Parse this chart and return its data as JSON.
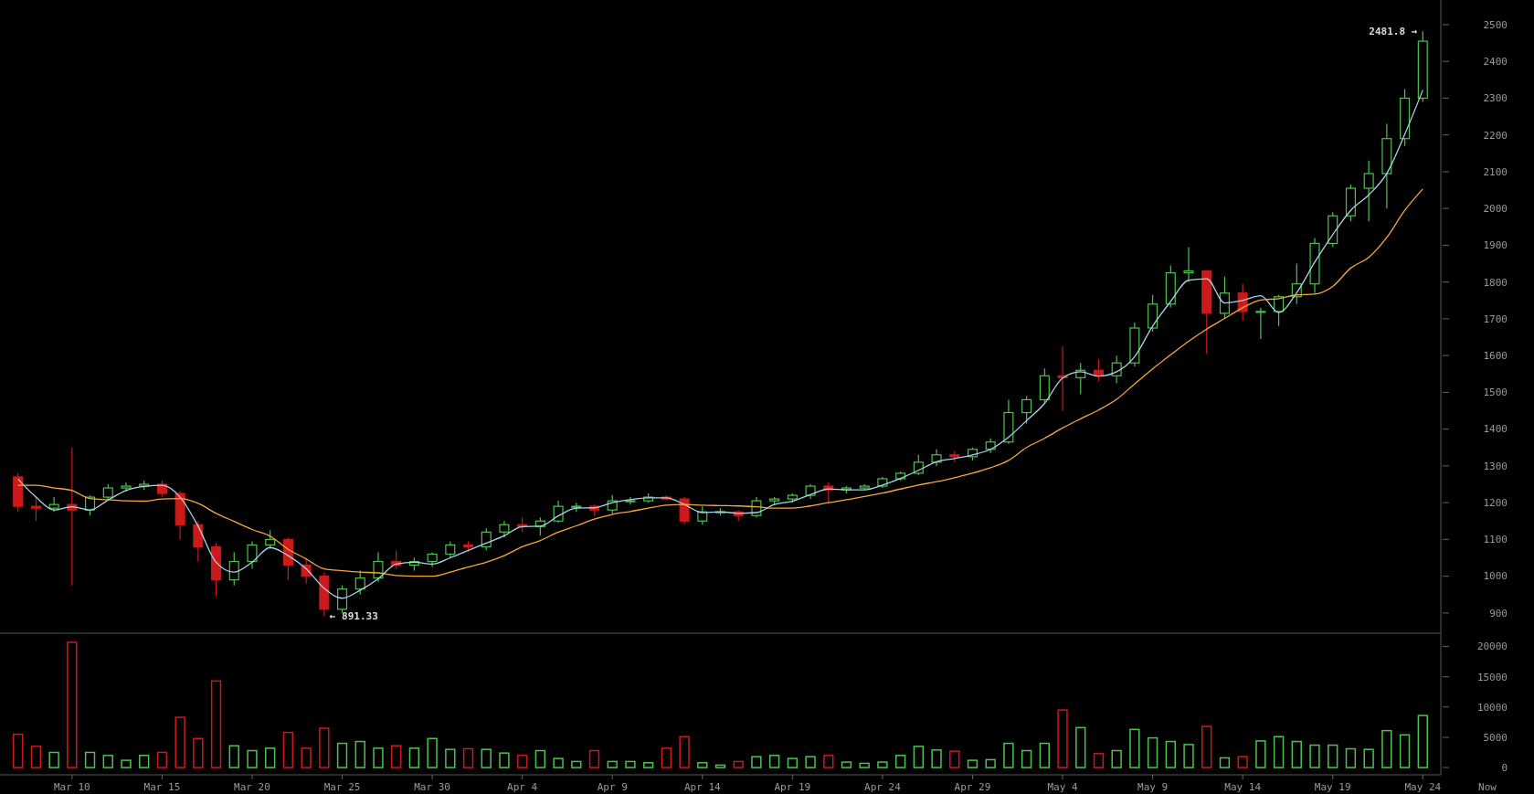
{
  "chart_data": [
    {
      "type": "candlestick",
      "tick_labels": "y",
      "x": [
        "--03-07",
        "--03-08",
        "--03-09",
        "--03-10",
        "--03-11",
        "--03-12",
        "--03-13",
        "--03-14",
        "--03-15",
        "--03-16",
        "--03-17",
        "--03-18",
        "--03-19",
        "--03-20",
        "--03-21",
        "--03-22",
        "--03-23",
        "--03-24",
        "--03-25",
        "--03-26",
        "--03-27",
        "--03-28",
        "--03-29",
        "--03-30",
        "--03-31",
        "--04-01",
        "--04-02",
        "--04-03",
        "--04-04",
        "--04-05",
        "--04-06",
        "--04-07",
        "--04-08",
        "--04-09",
        "--04-10",
        "--04-11",
        "--04-12",
        "--04-13",
        "--04-14",
        "--04-15",
        "--04-16",
        "--04-17",
        "--04-18",
        "--04-19",
        "--04-20",
        "--04-21",
        "--04-22",
        "--04-23",
        "--04-24",
        "--04-25",
        "--04-26",
        "--04-27",
        "--04-28",
        "--04-29",
        "--04-30",
        "--05-01",
        "--05-02",
        "--05-03",
        "--05-04",
        "--05-05",
        "--05-06",
        "--05-07",
        "--05-08",
        "--05-09",
        "--05-10",
        "--05-11",
        "--05-12",
        "--05-13",
        "--05-14",
        "--05-15",
        "--05-16",
        "--05-17",
        "--05-18",
        "--05-19",
        "--05-20",
        "--05-21",
        "--05-22",
        "--05-23",
        "--05-24"
      ],
      "ohlc": [
        [
          1270,
          1280,
          1175,
          1190
        ],
        [
          1190,
          1215,
          1150,
          1185
        ],
        [
          1185,
          1215,
          1175,
          1195
        ],
        [
          1195,
          1350,
          975,
          1180
        ],
        [
          1180,
          1220,
          1165,
          1215
        ],
        [
          1215,
          1250,
          1205,
          1240
        ],
        [
          1240,
          1255,
          1230,
          1245
        ],
        [
          1245,
          1260,
          1235,
          1250
        ],
        [
          1250,
          1260,
          1215,
          1225
        ],
        [
          1225,
          1230,
          1100,
          1140
        ],
        [
          1140,
          1150,
          1040,
          1080
        ],
        [
          1080,
          1090,
          945,
          990
        ],
        [
          990,
          1065,
          975,
          1040
        ],
        [
          1040,
          1095,
          1020,
          1085
        ],
        [
          1085,
          1125,
          1075,
          1100
        ],
        [
          1100,
          1105,
          990,
          1030
        ],
        [
          1030,
          1050,
          980,
          1000
        ],
        [
          1000,
          1010,
          891.33,
          910
        ],
        [
          910,
          975,
          900,
          965
        ],
        [
          965,
          1015,
          950,
          995
        ],
        [
          995,
          1065,
          985,
          1040
        ],
        [
          1040,
          1070,
          1020,
          1030
        ],
        [
          1030,
          1050,
          1015,
          1040
        ],
        [
          1040,
          1065,
          1025,
          1060
        ],
        [
          1060,
          1095,
          1050,
          1085
        ],
        [
          1085,
          1095,
          1065,
          1080
        ],
        [
          1080,
          1130,
          1070,
          1120
        ],
        [
          1120,
          1150,
          1105,
          1140
        ],
        [
          1140,
          1160,
          1120,
          1135
        ],
        [
          1135,
          1160,
          1110,
          1150
        ],
        [
          1150,
          1205,
          1145,
          1190
        ],
        [
          1190,
          1200,
          1175,
          1190
        ],
        [
          1190,
          1195,
          1165,
          1180
        ],
        [
          1180,
          1220,
          1170,
          1205
        ],
        [
          1205,
          1215,
          1195,
          1205
        ],
        [
          1205,
          1225,
          1200,
          1215
        ],
        [
          1215,
          1220,
          1205,
          1210
        ],
        [
          1210,
          1215,
          1140,
          1150
        ],
        [
          1150,
          1190,
          1140,
          1175
        ],
        [
          1175,
          1185,
          1165,
          1175
        ],
        [
          1175,
          1180,
          1150,
          1165
        ],
        [
          1165,
          1215,
          1160,
          1205
        ],
        [
          1205,
          1215,
          1195,
          1210
        ],
        [
          1210,
          1225,
          1200,
          1220
        ],
        [
          1220,
          1250,
          1210,
          1245
        ],
        [
          1245,
          1255,
          1200,
          1235
        ],
        [
          1235,
          1245,
          1225,
          1240
        ],
        [
          1240,
          1250,
          1235,
          1245
        ],
        [
          1245,
          1270,
          1240,
          1265
        ],
        [
          1265,
          1285,
          1260,
          1280
        ],
        [
          1280,
          1330,
          1275,
          1310
        ],
        [
          1310,
          1345,
          1300,
          1330
        ],
        [
          1330,
          1340,
          1310,
          1325
        ],
        [
          1325,
          1350,
          1315,
          1345
        ],
        [
          1345,
          1375,
          1335,
          1365
        ],
        [
          1365,
          1480,
          1360,
          1445
        ],
        [
          1445,
          1490,
          1415,
          1480
        ],
        [
          1480,
          1565,
          1470,
          1545
        ],
        [
          1545,
          1625,
          1450,
          1540
        ],
        [
          1540,
          1580,
          1495,
          1560
        ],
        [
          1560,
          1590,
          1530,
          1545
        ],
        [
          1545,
          1600,
          1525,
          1580
        ],
        [
          1580,
          1690,
          1570,
          1675
        ],
        [
          1675,
          1765,
          1665,
          1740
        ],
        [
          1740,
          1845,
          1730,
          1825
        ],
        [
          1825,
          1895,
          1800,
          1830
        ],
        [
          1830,
          1830,
          1605,
          1715
        ],
        [
          1715,
          1815,
          1700,
          1770
        ],
        [
          1770,
          1795,
          1695,
          1720
        ],
        [
          1720,
          1730,
          1645,
          1720
        ],
        [
          1720,
          1765,
          1680,
          1760
        ],
        [
          1760,
          1850,
          1740,
          1795
        ],
        [
          1795,
          1920,
          1770,
          1905
        ],
        [
          1905,
          1990,
          1895,
          1980
        ],
        [
          1980,
          2065,
          1965,
          2055
        ],
        [
          2055,
          2130,
          1965,
          2095
        ],
        [
          2095,
          2230,
          2000,
          2190
        ],
        [
          2190,
          2325,
          2170,
          2300
        ],
        [
          2300,
          2481.8,
          2290,
          2455
        ]
      ],
      "colors": [
        "#cc1a1a",
        "#cc1a1a",
        "#4ec24e",
        "#cc1a1a",
        "#4ec24e",
        "#4ec24e",
        "#4ec24e",
        "#4ec24e",
        "#cc1a1a",
        "#cc1a1a",
        "#cc1a1a",
        "#cc1a1a",
        "#4ec24e",
        "#4ec24e",
        "#4ec24e",
        "#cc1a1a",
        "#cc1a1a",
        "#cc1a1a",
        "#4ec24e",
        "#4ec24e",
        "#4ec24e",
        "#cc1a1a",
        "#4ec24e",
        "#4ec24e",
        "#4ec24e",
        "#cc1a1a",
        "#4ec24e",
        "#4ec24e",
        "#cc1a1a",
        "#4ec24e",
        "#4ec24e",
        "#4ec24e",
        "#cc1a1a",
        "#4ec24e",
        "#4ec24e",
        "#4ec24e",
        "#cc1a1a",
        "#cc1a1a",
        "#4ec24e",
        "#4ec24e",
        "#cc1a1a",
        "#4ec24e",
        "#4ec24e",
        "#4ec24e",
        "#4ec24e",
        "#cc1a1a",
        "#4ec24e",
        "#4ec24e",
        "#4ec24e",
        "#4ec24e",
        "#4ec24e",
        "#4ec24e",
        "#cc1a1a",
        "#4ec24e",
        "#4ec24e",
        "#4ec24e",
        "#4ec24e",
        "#4ec24e",
        "#cc1a1a",
        "#4ec24e",
        "#cc1a1a",
        "#4ec24e",
        "#4ec24e",
        "#4ec24e",
        "#4ec24e",
        "#4ec24e",
        "#cc1a1a",
        "#4ec24e",
        "#cc1a1a",
        "#4ec24e",
        "#4ec24e",
        "#4ec24e",
        "#4ec24e",
        "#4ec24e",
        "#4ec24e",
        "#4ec24e",
        "#4ec24e",
        "#4ec24e",
        "#4ec24e"
      ],
      "series": [
        {
          "type": "line",
          "color": "#a9d3ea",
          "values": [
            1264,
            1215,
            1180,
            1189,
            1180,
            1207,
            1233,
            1244,
            1247,
            1215,
            1136,
            1038,
            1011,
            1038,
            1078,
            1056,
            1020,
            967,
            940,
            962,
            993,
            1033,
            1038,
            1033,
            1050,
            1070,
            1090,
            1110,
            1135,
            1136,
            1164,
            1185,
            1186,
            1200,
            1208,
            1213,
            1213,
            1195,
            1173,
            1175,
            1171,
            1173,
            1195,
            1204,
            1222,
            1237,
            1235,
            1235,
            1248,
            1266,
            1288,
            1311,
            1320,
            1330,
            1345,
            1378,
            1423,
            1470,
            1539,
            1556,
            1544,
            1556,
            1597,
            1680,
            1747,
            1805,
            1809,
            1743,
            1750,
            1763,
            1717,
            1771,
            1854,
            1929,
            1995,
            2037,
            2095,
            2202,
            2322
          ]
        },
        {
          "type": "line",
          "color": "#f5a742",
          "values": [
            1247,
            1247,
            1240,
            1233,
            1211,
            1208,
            1205,
            1204,
            1210,
            1211,
            1198,
            1171,
            1149,
            1127,
            1109,
            1073,
            1047,
            1020,
            1015,
            1011,
            1009,
            1002,
            1000,
            1000,
            1011,
            1025,
            1038,
            1056,
            1080,
            1097,
            1120,
            1137,
            1155,
            1168,
            1176,
            1185,
            1193,
            1195,
            1193,
            1192,
            1191,
            1189,
            1185,
            1185,
            1191,
            1200,
            1208,
            1217,
            1226,
            1237,
            1248,
            1257,
            1268,
            1280,
            1295,
            1315,
            1350,
            1375,
            1403,
            1428,
            1452,
            1481,
            1523,
            1564,
            1602,
            1639,
            1672,
            1701,
            1730,
            1751,
            1755,
            1765,
            1767,
            1788,
            1838,
            1867,
            1921,
            1995,
            2053
          ]
        }
      ],
      "xlim": [
        "--03-06",
        "--05-25"
      ],
      "ylim": [
        845,
        2567
      ],
      "yticks": [
        900,
        1000,
        1100,
        1200,
        1300,
        1400,
        1500,
        1600,
        1700,
        1800,
        1900,
        2000,
        2100,
        2200,
        2300,
        2400,
        2500
      ],
      "annotations": [
        {
          "text": "2481.8 →",
          "x": "--05-24",
          "y": 2481.8
        },
        {
          "text": "← 891.33",
          "x": "--03-24",
          "y": 891.33
        }
      ]
    },
    {
      "type": "bar",
      "x": [
        "--03-07",
        "--03-08",
        "--03-09",
        "--03-10",
        "--03-11",
        "--03-12",
        "--03-13",
        "--03-14",
        "--03-15",
        "--03-16",
        "--03-17",
        "--03-18",
        "--03-19",
        "--03-20",
        "--03-21",
        "--03-22",
        "--03-23",
        "--03-24",
        "--03-25",
        "--03-26",
        "--03-27",
        "--03-28",
        "--03-29",
        "--03-30",
        "--03-31",
        "--04-01",
        "--04-02",
        "--04-03",
        "--04-04",
        "--04-05",
        "--04-06",
        "--04-07",
        "--04-08",
        "--04-09",
        "--04-10",
        "--04-11",
        "--04-12",
        "--04-13",
        "--04-14",
        "--04-15",
        "--04-16",
        "--04-17",
        "--04-18",
        "--04-19",
        "--04-20",
        "--04-21",
        "--04-22",
        "--04-23",
        "--04-24",
        "--04-25",
        "--04-26",
        "--04-27",
        "--04-28",
        "--04-29",
        "--04-30",
        "--05-01",
        "--05-02",
        "--05-03",
        "--05-04",
        "--05-05",
        "--05-06",
        "--05-07",
        "--05-08",
        "--05-09",
        "--05-10",
        "--05-11",
        "--05-12",
        "--05-13",
        "--05-14",
        "--05-15",
        "--05-16",
        "--05-17",
        "--05-18",
        "--05-19",
        "--05-20",
        "--05-21",
        "--05-22",
        "--05-23",
        "--05-24"
      ],
      "values": [
        5500,
        3500,
        2500,
        20700,
        2500,
        2000,
        1200,
        2000,
        2500,
        8300,
        4800,
        14300,
        3600,
        2800,
        3200,
        5800,
        3200,
        6500,
        4000,
        4300,
        3200,
        3600,
        3200,
        4800,
        3000,
        3100,
        3000,
        2400,
        2000,
        2800,
        1500,
        1000,
        2800,
        1000,
        1000,
        800,
        3200,
        5100,
        800,
        400,
        1000,
        1800,
        2000,
        1500,
        1800,
        2000,
        900,
        700,
        900,
        2000,
        3500,
        2900,
        2700,
        1200,
        1300,
        4000,
        2800,
        4000,
        9500,
        6600,
        2300,
        2800,
        6300,
        4900,
        4300,
        3800,
        6800,
        1600,
        1800,
        4400,
        5100,
        4300,
        3700,
        3700,
        3100,
        3000,
        6100,
        5400,
        8600
      ],
      "colors": [
        "#cc1a1a",
        "#cc1a1a",
        "#4ec24e",
        "#cc1a1a",
        "#4ec24e",
        "#4ec24e",
        "#4ec24e",
        "#4ec24e",
        "#cc1a1a",
        "#cc1a1a",
        "#cc1a1a",
        "#cc1a1a",
        "#4ec24e",
        "#4ec24e",
        "#4ec24e",
        "#cc1a1a",
        "#cc1a1a",
        "#cc1a1a",
        "#4ec24e",
        "#4ec24e",
        "#4ec24e",
        "#cc1a1a",
        "#4ec24e",
        "#4ec24e",
        "#4ec24e",
        "#cc1a1a",
        "#4ec24e",
        "#4ec24e",
        "#cc1a1a",
        "#4ec24e",
        "#4ec24e",
        "#4ec24e",
        "#cc1a1a",
        "#4ec24e",
        "#4ec24e",
        "#4ec24e",
        "#cc1a1a",
        "#cc1a1a",
        "#4ec24e",
        "#4ec24e",
        "#cc1a1a",
        "#4ec24e",
        "#4ec24e",
        "#4ec24e",
        "#4ec24e",
        "#cc1a1a",
        "#4ec24e",
        "#4ec24e",
        "#4ec24e",
        "#4ec24e",
        "#4ec24e",
        "#4ec24e",
        "#cc1a1a",
        "#4ec24e",
        "#4ec24e",
        "#4ec24e",
        "#4ec24e",
        "#4ec24e",
        "#cc1a1a",
        "#4ec24e",
        "#cc1a1a",
        "#4ec24e",
        "#4ec24e",
        "#4ec24e",
        "#4ec24e",
        "#4ec24e",
        "#cc1a1a",
        "#4ec24e",
        "#cc1a1a",
        "#4ec24e",
        "#4ec24e",
        "#4ec24e",
        "#4ec24e",
        "#4ec24e",
        "#4ec24e",
        "#4ec24e",
        "#4ec24e",
        "#4ec24e",
        "#4ec24e"
      ],
      "xlim": [
        "--03-06",
        "--05-25"
      ],
      "ylim": [
        -1200,
        22200
      ],
      "yticks": [
        0,
        5000,
        10000,
        15000,
        20000
      ],
      "xticks": [
        {
          "value": "--03-10",
          "label": "Mar 10"
        },
        {
          "value": "--03-15",
          "label": "Mar 15"
        },
        {
          "value": "--03-20",
          "label": "Mar 20"
        },
        {
          "value": "--03-25",
          "label": "Mar 25"
        },
        {
          "value": "--03-30",
          "label": "Mar 30"
        },
        {
          "value": "--04-04",
          "label": "Apr 4"
        },
        {
          "value": "--04-09",
          "label": "Apr 9"
        },
        {
          "value": "--04-14",
          "label": "Apr 14"
        },
        {
          "value": "--04-19",
          "label": "Apr 19"
        },
        {
          "value": "--04-24",
          "label": "Apr 24"
        },
        {
          "value": "--04-29",
          "label": "Apr 29"
        },
        {
          "value": "--05-04",
          "label": "May 4"
        },
        {
          "value": "--05-09",
          "label": "May 9"
        },
        {
          "value": "--05-14",
          "label": "May 14"
        },
        {
          "value": "--05-19",
          "label": "May 19"
        },
        {
          "value": "--05-24",
          "label": "May 24"
        }
      ],
      "annotations": [
        "Now"
      ]
    }
  ]
}
